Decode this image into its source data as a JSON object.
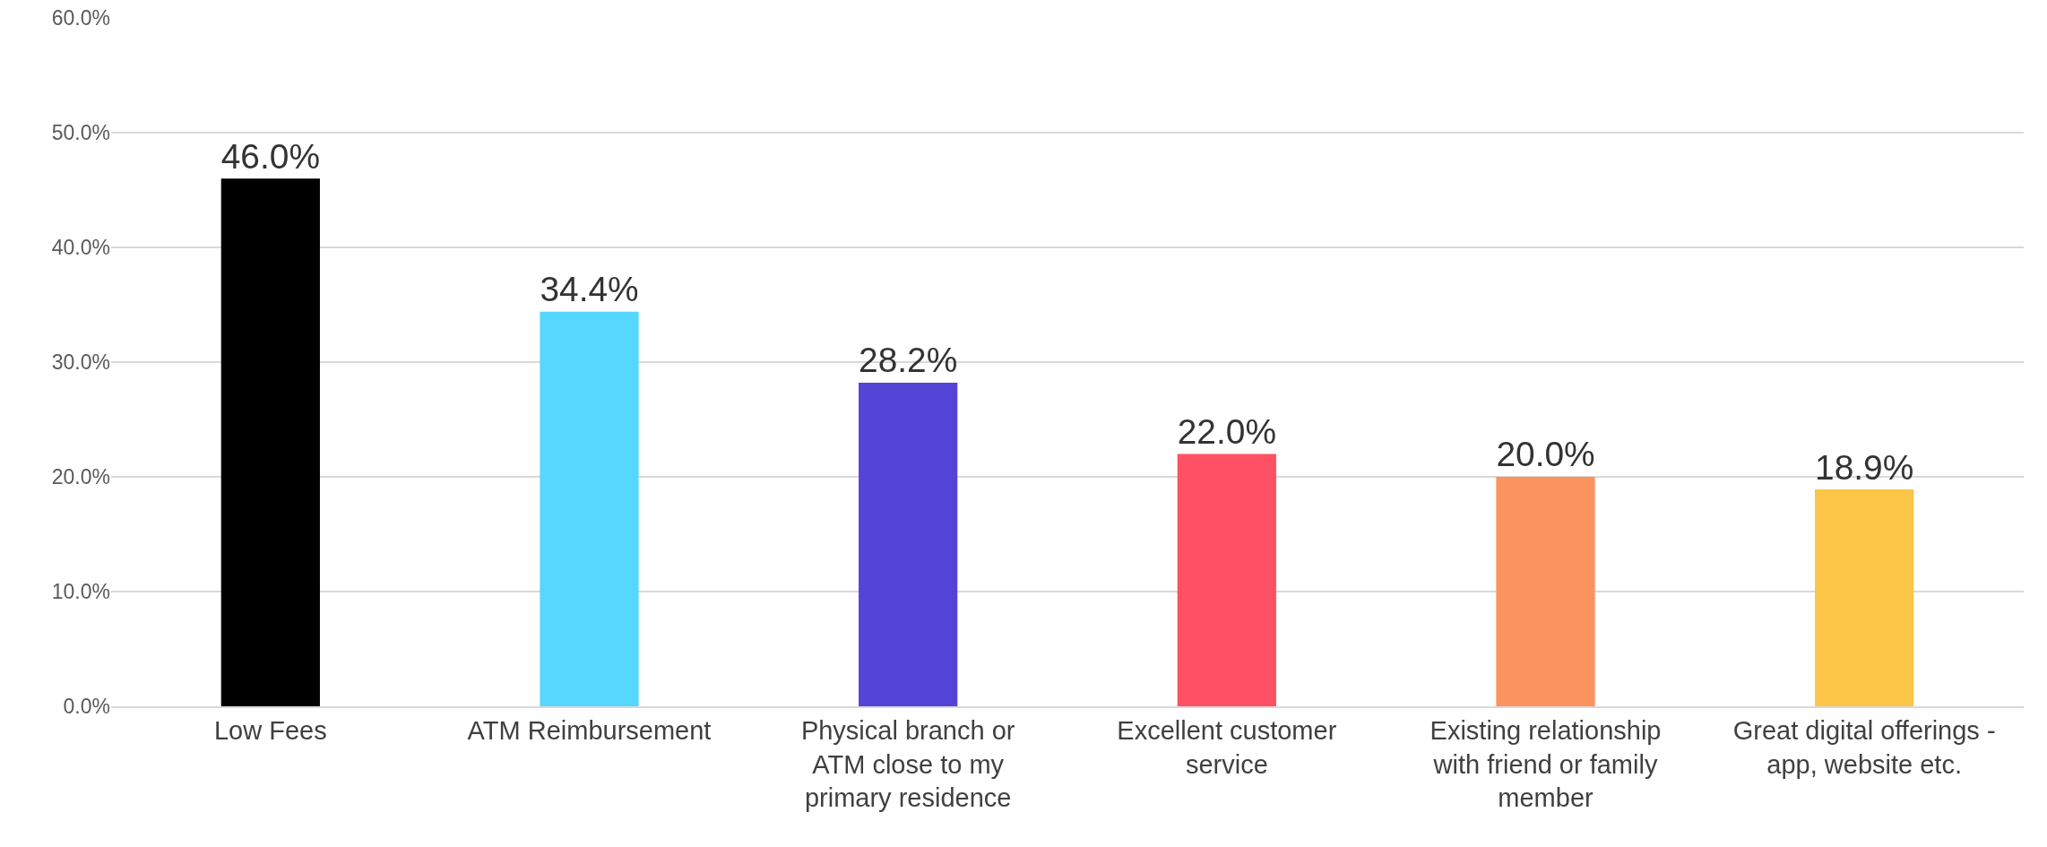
{
  "chart_data": {
    "type": "bar",
    "categories": [
      "Low Fees",
      "ATM Reimbursement",
      "Physical branch or ATM close to my primary residence",
      "Excellent customer service",
      "Existing relationship with friend or family member",
      "Great digital offerings - app, website etc."
    ],
    "values": [
      46.0,
      34.4,
      28.2,
      22.0,
      20.0,
      18.9
    ],
    "colors": [
      "#000000",
      "#56d7fd",
      "#5444d6",
      "#fe5163",
      "#fb935e",
      "#fbc547"
    ],
    "value_labels": [
      "46.0%",
      "34.4%",
      "28.2%",
      "22.0%",
      "20.0%",
      "18.9%"
    ],
    "ylim": [
      0,
      60
    ],
    "yticks": [
      {
        "value": 0,
        "label": "0.0%"
      },
      {
        "value": 10,
        "label": "10.0%"
      },
      {
        "value": 20,
        "label": "20.0%"
      },
      {
        "value": 30,
        "label": "30.0%"
      },
      {
        "value": 40,
        "label": "40.0%"
      },
      {
        "value": 50,
        "label": "50.0%"
      },
      {
        "value": 60,
        "label": "60.0%"
      }
    ],
    "grid": "y"
  }
}
